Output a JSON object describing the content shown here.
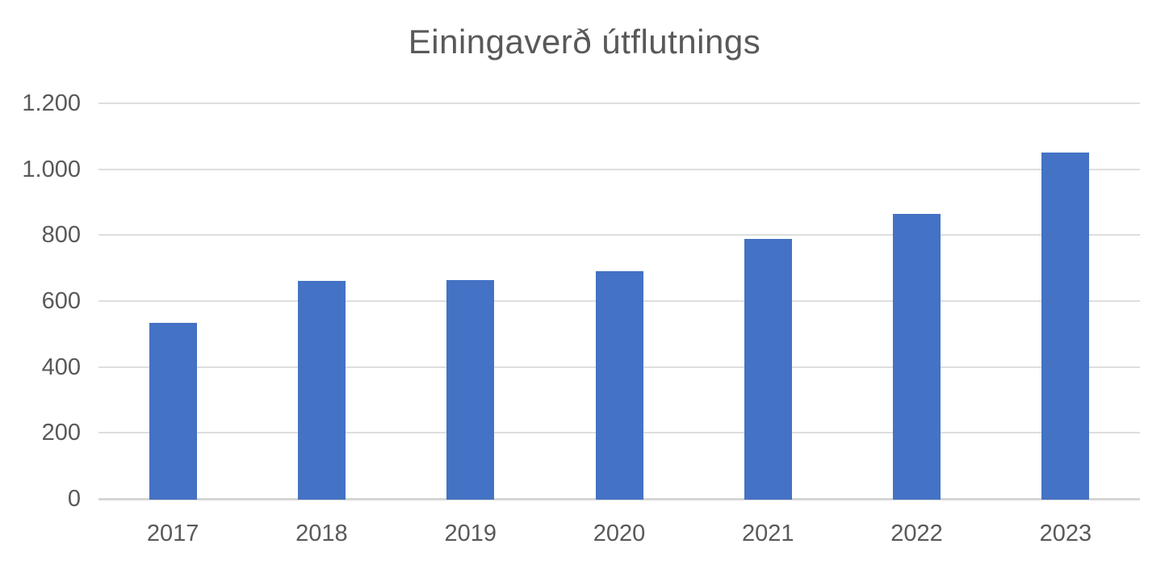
{
  "chart_data": {
    "type": "bar",
    "title": "Einingaverð útflutnings",
    "categories": [
      "2017",
      "2018",
      "2019",
      "2020",
      "2021",
      "2022",
      "2023"
    ],
    "values": [
      535,
      662,
      664,
      691,
      788,
      865,
      1051
    ],
    "xlabel": "",
    "ylabel": "",
    "ylim": [
      0,
      1200
    ],
    "ytick_interval": 200,
    "ytick_labels": [
      "0",
      "200",
      "400",
      "600",
      "800",
      "1.000",
      "1.200"
    ],
    "grid": "horizontal",
    "legend": "none",
    "bar_color": "#4472C4",
    "text_color": "#595959",
    "gridline_color": "#DEDEDE",
    "axis_line_color": "#D6D6D6",
    "background": "#FFFFFF"
  }
}
